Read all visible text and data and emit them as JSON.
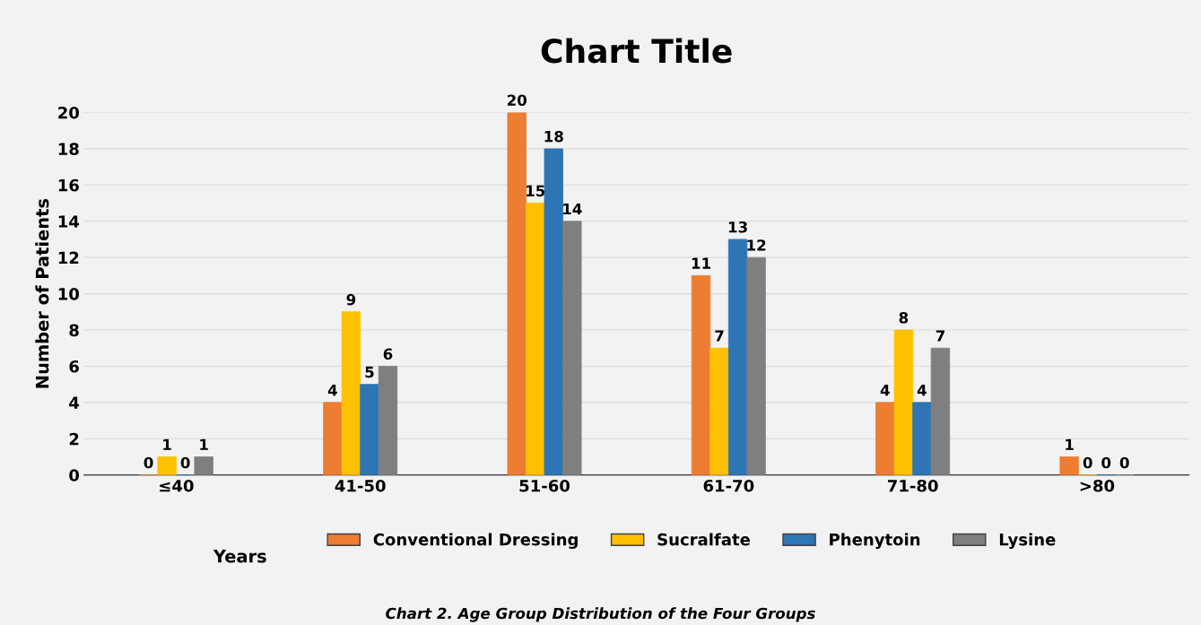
{
  "chart_data": {
    "type": "bar",
    "title": "Chart Title",
    "xlabel": "Years",
    "ylabel": "Number of Patients",
    "categories": [
      "≤40",
      "41-50",
      "51-60",
      "61-70",
      "71-80",
      ">80"
    ],
    "series": [
      {
        "name": "Conventional Dressing",
        "color": "#ed7d31",
        "values": [
          0,
          4,
          20,
          11,
          4,
          1
        ]
      },
      {
        "name": "Sucralfate",
        "color": "#ffc000",
        "values": [
          1,
          9,
          15,
          7,
          8,
          0
        ]
      },
      {
        "name": "Phenytoin",
        "color": "#2e75b6",
        "values": [
          0,
          5,
          18,
          13,
          4,
          0
        ]
      },
      {
        "name": "Lysine",
        "color": "#7f7f7f",
        "values": [
          1,
          6,
          14,
          12,
          7,
          0
        ]
      }
    ],
    "ylim": [
      0,
      20
    ],
    "yticks": [
      0,
      2,
      4,
      6,
      8,
      10,
      12,
      14,
      16,
      18,
      20
    ],
    "grid": "y",
    "legend": "bottom",
    "data_labels": true,
    "annotations": [
      "Chart 2. Age Group Distribution of the Four Groups"
    ]
  }
}
